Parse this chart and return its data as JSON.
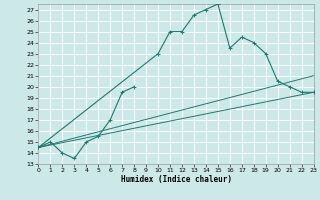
{
  "xlabel": "Humidex (Indice chaleur)",
  "xlim": [
    0,
    23
  ],
  "ylim": [
    13,
    27.5
  ],
  "yticks": [
    13,
    14,
    15,
    16,
    17,
    18,
    19,
    20,
    21,
    22,
    23,
    24,
    25,
    26,
    27
  ],
  "xticks": [
    0,
    1,
    2,
    3,
    4,
    5,
    6,
    7,
    8,
    9,
    10,
    11,
    12,
    13,
    14,
    15,
    16,
    17,
    18,
    19,
    20,
    21,
    22,
    23
  ],
  "bg_color": "#cde8e8",
  "grid_color": "#b8d8d8",
  "line_color": "#1a7a6e",
  "line1_x": [
    0,
    1,
    2,
    3,
    4,
    5,
    6,
    7,
    8
  ],
  "line1_y": [
    14.5,
    15.0,
    14.0,
    13.5,
    15.0,
    15.5,
    17.0,
    19.5,
    20.0
  ],
  "line2_x": [
    0,
    10,
    11,
    12,
    13,
    14,
    15,
    16,
    17,
    18,
    19,
    20,
    21,
    22,
    23
  ],
  "line2_y": [
    14.5,
    23.0,
    25.0,
    25.0,
    26.5,
    27.0,
    27.5,
    23.5,
    24.5,
    24.0,
    23.0,
    20.5,
    20.0,
    19.5,
    19.5
  ],
  "line3_x": [
    0,
    23
  ],
  "line3_y": [
    14.5,
    19.5
  ],
  "line4_x": [
    0,
    23
  ],
  "line4_y": [
    14.5,
    21.0
  ]
}
